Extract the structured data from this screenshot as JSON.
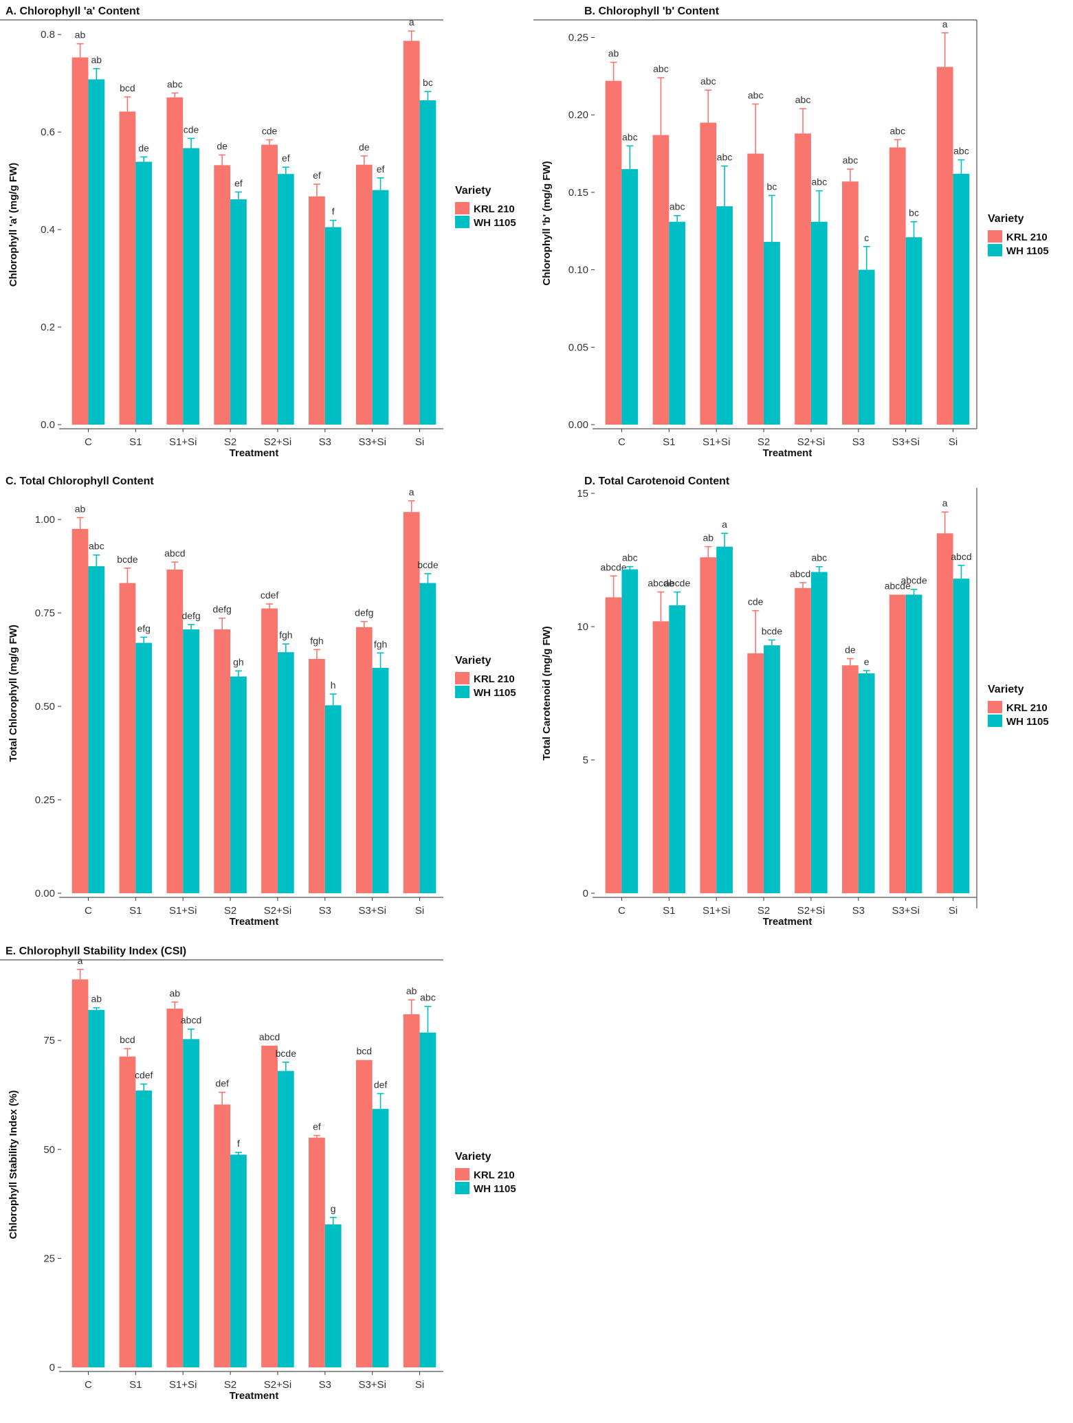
{
  "colors": {
    "KRL 210": "#F8766D",
    "WH 1105": "#00BFC4"
  },
  "legend": {
    "title": "Variety",
    "items": [
      "KRL 210",
      "WH 1105"
    ]
  },
  "chart_data": [
    {
      "type": "bar",
      "panel": "A",
      "title": "A. Chlorophyll 'a' Content",
      "xlabel": "Treatment",
      "ylabel": "Chlorophyll 'a' (mg/g FW)",
      "ylim": [
        0,
        0.82
      ],
      "yticks": [
        0,
        0.2,
        0.4,
        0.6,
        0.8
      ],
      "ytick_labels": [
        "0.0",
        "0.2",
        "0.4",
        "0.6",
        "0.8"
      ],
      "categories": [
        "C",
        "S1",
        "S1+Si",
        "S2",
        "S2+Si",
        "S3",
        "S3+Si",
        "Si"
      ],
      "series": [
        {
          "name": "KRL 210",
          "values": [
            0.753,
            0.642,
            0.671,
            0.532,
            0.574,
            0.468,
            0.533,
            0.787
          ],
          "errors": [
            0.028,
            0.03,
            0.009,
            0.021,
            0.01,
            0.025,
            0.018,
            0.02
          ],
          "labels": [
            "ab",
            "bcd",
            "abc",
            "de",
            "cde",
            "ef",
            "de",
            "a"
          ]
        },
        {
          "name": "WH 1105",
          "values": [
            0.708,
            0.539,
            0.567,
            0.462,
            0.514,
            0.405,
            0.481,
            0.665
          ],
          "errors": [
            0.022,
            0.01,
            0.02,
            0.015,
            0.014,
            0.014,
            0.025,
            0.018
          ],
          "labels": [
            "ab",
            "de",
            "cde",
            "ef",
            "ef",
            "f",
            "ef",
            "bc"
          ]
        }
      ]
    },
    {
      "type": "bar",
      "panel": "B",
      "title": "B. Chlorophyll 'b' Content",
      "xlabel": "Treatment",
      "ylabel": "Chlorophyll 'b' (mg/g FW)",
      "ylim": [
        0,
        0.26
      ],
      "yticks": [
        0,
        0.05,
        0.1,
        0.15,
        0.2,
        0.25
      ],
      "ytick_labels": [
        "0.00",
        "0.05",
        "0.10",
        "0.15",
        "0.20",
        "0.25"
      ],
      "categories": [
        "C",
        "S1",
        "S1+Si",
        "S2",
        "S2+Si",
        "S3",
        "S3+Si",
        "Si"
      ],
      "series": [
        {
          "name": "KRL 210",
          "values": [
            0.222,
            0.187,
            0.195,
            0.175,
            0.188,
            0.157,
            0.179,
            0.231
          ],
          "errors": [
            0.012,
            0.037,
            0.021,
            0.032,
            0.016,
            0.008,
            0.005,
            0.022
          ],
          "labels": [
            "ab",
            "abc",
            "abc",
            "abc",
            "abc",
            "abc",
            "abc",
            "a"
          ]
        },
        {
          "name": "WH 1105",
          "values": [
            0.165,
            0.131,
            0.141,
            0.118,
            0.131,
            0.1,
            0.121,
            0.162
          ],
          "errors": [
            0.015,
            0.004,
            0.026,
            0.03,
            0.02,
            0.015,
            0.01,
            0.009
          ],
          "labels": [
            "abc",
            "abc",
            "abc",
            "bc",
            "abc",
            "c",
            "bc",
            "abc"
          ]
        }
      ]
    },
    {
      "type": "bar",
      "panel": "C",
      "title": "C. Total Chlorophyll Content",
      "xlabel": "Treatment",
      "ylabel": "Total Chlorophyll (mg/g FW)",
      "ylim": [
        0,
        1.07
      ],
      "yticks": [
        0,
        0.25,
        0.5,
        0.75,
        1.0
      ],
      "ytick_labels": [
        "0.00",
        "0.25",
        "0.50",
        "0.75",
        "1.00"
      ],
      "categories": [
        "C",
        "S1",
        "S1+Si",
        "S2",
        "S2+Si",
        "S3",
        "S3+Si",
        "Si"
      ],
      "series": [
        {
          "name": "KRL 210",
          "values": [
            0.975,
            0.83,
            0.866,
            0.706,
            0.762,
            0.627,
            0.712,
            1.02
          ],
          "errors": [
            0.03,
            0.04,
            0.02,
            0.03,
            0.012,
            0.025,
            0.015,
            0.03
          ],
          "labels": [
            "ab",
            "bcde",
            "abcd",
            "defg",
            "cdef",
            "fgh",
            "defg",
            "a"
          ]
        },
        {
          "name": "WH 1105",
          "values": [
            0.875,
            0.67,
            0.706,
            0.58,
            0.645,
            0.503,
            0.603,
            0.83
          ],
          "errors": [
            0.03,
            0.015,
            0.013,
            0.015,
            0.022,
            0.03,
            0.04,
            0.025
          ],
          "labels": [
            "abc",
            "efg",
            "defg",
            "gh",
            "fgh",
            "h",
            "fgh",
            "bcde"
          ]
        }
      ]
    },
    {
      "type": "bar",
      "panel": "D",
      "title": "D. Total Carotenoid Content",
      "xlabel": "Treatment",
      "ylabel": "Total Carotenoid (mg/g FW)",
      "ylim": [
        0,
        15
      ],
      "yticks": [
        0,
        5,
        10,
        15
      ],
      "ytick_labels": [
        "0",
        "5",
        "10",
        "15"
      ],
      "categories": [
        "C",
        "S1",
        "S1+Si",
        "S2",
        "S2+Si",
        "S3",
        "S3+Si",
        "Si"
      ],
      "series": [
        {
          "name": "KRL 210",
          "values": [
            11.1,
            10.2,
            12.6,
            9.0,
            11.45,
            8.55,
            11.2,
            13.5
          ],
          "errors": [
            0.8,
            1.1,
            0.4,
            1.6,
            0.2,
            0.25,
            0.0,
            0.8
          ],
          "labels": [
            "abcde",
            "abcde",
            "ab",
            "cde",
            "abcde",
            "de",
            "abcde",
            "a"
          ]
        },
        {
          "name": "WH 1105",
          "values": [
            12.15,
            10.8,
            13.0,
            9.3,
            12.05,
            8.25,
            11.2,
            11.8
          ],
          "errors": [
            0.1,
            0.5,
            0.5,
            0.2,
            0.2,
            0.1,
            0.2,
            0.5
          ],
          "labels": [
            "abc",
            "abcde",
            "a",
            "bcde",
            "abc",
            "e",
            "abcde",
            "abcd"
          ]
        }
      ]
    },
    {
      "type": "bar",
      "panel": "E",
      "title": "E. Chlorophyll Stability Index (CSI)",
      "xlabel": "Treatment",
      "ylabel": "Chlorophyll Stability Index (%)",
      "ylim": [
        0,
        93
      ],
      "yticks": [
        0,
        25,
        50,
        75
      ],
      "ytick_labels": [
        "0",
        "25",
        "50",
        "75"
      ],
      "categories": [
        "C",
        "S1",
        "S1+Si",
        "S2",
        "S2+Si",
        "S3",
        "S3+Si",
        "Si"
      ],
      "series": [
        {
          "name": "KRL 210",
          "values": [
            89.0,
            71.3,
            82.3,
            60.3,
            73.8,
            52.7,
            70.5,
            81.0
          ],
          "errors": [
            2.3,
            1.8,
            1.5,
            2.8,
            0.0,
            0.5,
            0.0,
            3.3
          ],
          "labels": [
            "a",
            "bcd",
            "ab",
            "def",
            "abcd",
            "ef",
            "bcd",
            "ab"
          ]
        },
        {
          "name": "WH 1105",
          "values": [
            82.0,
            63.5,
            75.3,
            48.8,
            68.0,
            32.8,
            59.3,
            76.8
          ],
          "errors": [
            0.5,
            1.5,
            2.3,
            0.5,
            2.0,
            1.6,
            3.5,
            6.0
          ],
          "labels": [
            "ab",
            "cdef",
            "abcd",
            "f",
            "bcde",
            "g",
            "def",
            "abc"
          ]
        }
      ]
    }
  ]
}
